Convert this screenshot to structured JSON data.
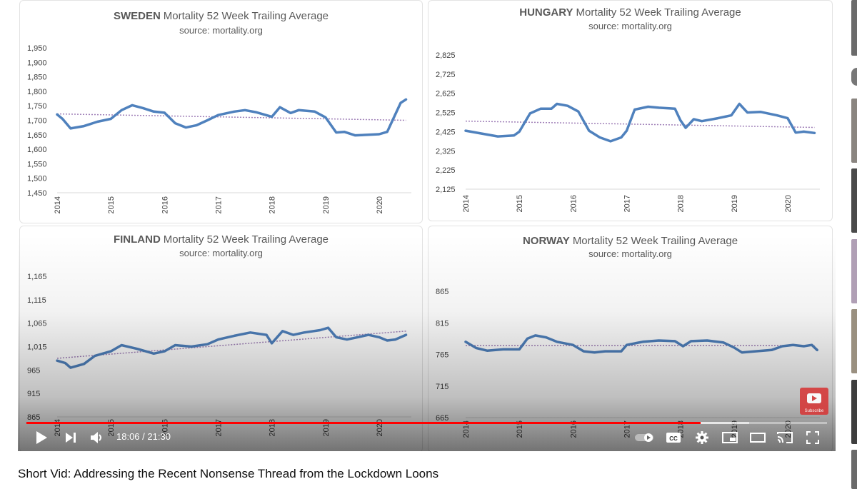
{
  "colors": {
    "series": "#4f81bd",
    "trend": "#a080b8",
    "progress": "#ff0000",
    "subscribe": "#d63a3a"
  },
  "chart_data": [
    {
      "type": "line",
      "title_country": "SWEDEN",
      "title_rest": "Mortality 52 Week Trailing Average",
      "subtitle": "source: mortality.org",
      "y_ticks": [
        "1,950",
        "1,900",
        "1,850",
        "1,800",
        "1,750",
        "1,700",
        "1,650",
        "1,600",
        "1,550",
        "1,500",
        "1,450"
      ],
      "ylim": [
        1450,
        1950
      ],
      "x_ticks": [
        "2014",
        "2015",
        "2016",
        "2017",
        "2018",
        "2019",
        "2020"
      ],
      "xlim": [
        2014,
        2020.6
      ],
      "series": [
        {
          "values": [
            [
              2014,
              1720
            ],
            [
              2014.1,
              1705
            ],
            [
              2014.25,
              1672
            ],
            [
              2014.5,
              1680
            ],
            [
              2014.75,
              1695
            ],
            [
              2015,
              1705
            ],
            [
              2015.2,
              1735
            ],
            [
              2015.4,
              1752
            ],
            [
              2015.6,
              1742
            ],
            [
              2015.8,
              1730
            ],
            [
              2016,
              1726
            ],
            [
              2016.2,
              1690
            ],
            [
              2016.4,
              1675
            ],
            [
              2016.6,
              1683
            ],
            [
              2016.8,
              1700
            ],
            [
              2017,
              1718
            ],
            [
              2017.3,
              1730
            ],
            [
              2017.5,
              1735
            ],
            [
              2017.7,
              1728
            ],
            [
              2018,
              1712
            ],
            [
              2018.15,
              1745
            ],
            [
              2018.35,
              1725
            ],
            [
              2018.5,
              1735
            ],
            [
              2018.8,
              1730
            ],
            [
              2019,
              1710
            ],
            [
              2019.2,
              1658
            ],
            [
              2019.35,
              1660
            ],
            [
              2019.55,
              1648
            ],
            [
              2019.8,
              1650
            ],
            [
              2020,
              1652
            ],
            [
              2020.15,
              1660
            ],
            [
              2020.25,
              1700
            ],
            [
              2020.4,
              1760
            ],
            [
              2020.5,
              1772
            ]
          ]
        }
      ],
      "trend": [
        [
          2014,
          1722
        ],
        [
          2020.5,
          1700
        ]
      ]
    },
    {
      "type": "line",
      "title_country": "HUNGARY",
      "title_rest": "Mortality 52 Week Trailing Average",
      "subtitle": "source: mortality.org",
      "y_ticks": [
        "2,825",
        "2,725",
        "2,625",
        "2,525",
        "2,425",
        "2,325",
        "2,225",
        "2,125"
      ],
      "ylim": [
        2125,
        2825
      ],
      "x_ticks": [
        "2014",
        "2015",
        "2016",
        "2017",
        "2018",
        "2019",
        "2020"
      ],
      "xlim": [
        2014,
        2020.6
      ],
      "series": [
        {
          "values": [
            [
              2014,
              2430
            ],
            [
              2014.3,
              2415
            ],
            [
              2014.6,
              2400
            ],
            [
              2014.9,
              2405
            ],
            [
              2015,
              2425
            ],
            [
              2015.2,
              2520
            ],
            [
              2015.4,
              2545
            ],
            [
              2015.6,
              2545
            ],
            [
              2015.7,
              2570
            ],
            [
              2015.9,
              2560
            ],
            [
              2016.1,
              2530
            ],
            [
              2016.3,
              2430
            ],
            [
              2016.5,
              2395
            ],
            [
              2016.7,
              2375
            ],
            [
              2016.9,
              2395
            ],
            [
              2017,
              2430
            ],
            [
              2017.15,
              2540
            ],
            [
              2017.4,
              2555
            ],
            [
              2017.6,
              2550
            ],
            [
              2017.9,
              2545
            ],
            [
              2018,
              2485
            ],
            [
              2018.1,
              2445
            ],
            [
              2018.25,
              2490
            ],
            [
              2018.4,
              2480
            ],
            [
              2018.7,
              2495
            ],
            [
              2018.95,
              2510
            ],
            [
              2019.1,
              2570
            ],
            [
              2019.25,
              2525
            ],
            [
              2019.5,
              2528
            ],
            [
              2019.8,
              2510
            ],
            [
              2020,
              2495
            ],
            [
              2020.15,
              2420
            ],
            [
              2020.3,
              2425
            ],
            [
              2020.5,
              2418
            ]
          ]
        }
      ],
      "trend": [
        [
          2014,
          2480
        ],
        [
          2020.5,
          2447
        ]
      ]
    },
    {
      "type": "line",
      "title_country": "FINLAND",
      "title_rest": "Mortality 52 Week Trailing Average",
      "subtitle": "source: mortality.org",
      "y_ticks": [
        "1,165",
        "1,115",
        "1,065",
        "1,015",
        "965",
        "915",
        "865"
      ],
      "ylim": [
        865,
        1165
      ],
      "x_ticks": [
        "2014",
        "2015",
        "2016",
        "2017",
        "2018",
        "2019",
        "2020"
      ],
      "xlim": [
        2014,
        2020.6
      ],
      "series": [
        {
          "values": [
            [
              2014,
              985
            ],
            [
              2014.15,
              980
            ],
            [
              2014.25,
              970
            ],
            [
              2014.5,
              978
            ],
            [
              2014.7,
              995
            ],
            [
              2015,
              1005
            ],
            [
              2015.2,
              1018
            ],
            [
              2015.5,
              1010
            ],
            [
              2015.8,
              1000
            ],
            [
              2016,
              1005
            ],
            [
              2016.2,
              1018
            ],
            [
              2016.5,
              1015
            ],
            [
              2016.8,
              1020
            ],
            [
              2017,
              1030
            ],
            [
              2017.3,
              1038
            ],
            [
              2017.6,
              1045
            ],
            [
              2017.9,
              1040
            ],
            [
              2018,
              1022
            ],
            [
              2018.2,
              1048
            ],
            [
              2018.4,
              1040
            ],
            [
              2018.6,
              1045
            ],
            [
              2018.9,
              1050
            ],
            [
              2019.05,
              1055
            ],
            [
              2019.2,
              1035
            ],
            [
              2019.4,
              1030
            ],
            [
              2019.6,
              1035
            ],
            [
              2019.8,
              1040
            ],
            [
              2020,
              1035
            ],
            [
              2020.15,
              1028
            ],
            [
              2020.3,
              1030
            ],
            [
              2020.5,
              1040
            ]
          ]
        }
      ],
      "trend": [
        [
          2014,
          990
        ],
        [
          2020.5,
          1048
        ]
      ]
    },
    {
      "type": "line",
      "title_country": "NORWAY",
      "title_rest": "Mortality 52 Week Trailing Average",
      "subtitle": "source: mortality.org",
      "y_ticks": [
        "865",
        "815",
        "765",
        "715",
        "665"
      ],
      "ylim": [
        665,
        865
      ],
      "x_ticks": [
        "2014",
        "2015",
        "2016",
        "2017",
        "2018",
        "2019",
        "2020"
      ],
      "xlim": [
        2014,
        2020.6
      ],
      "series": [
        {
          "values": [
            [
              2014,
              785
            ],
            [
              2014.2,
              775
            ],
            [
              2014.4,
              771
            ],
            [
              2014.7,
              773
            ],
            [
              2015,
              773
            ],
            [
              2015.15,
              790
            ],
            [
              2015.3,
              795
            ],
            [
              2015.5,
              792
            ],
            [
              2015.7,
              785
            ],
            [
              2016,
              780
            ],
            [
              2016.2,
              770
            ],
            [
              2016.4,
              768
            ],
            [
              2016.6,
              770
            ],
            [
              2016.9,
              770
            ],
            [
              2017,
              780
            ],
            [
              2017.3,
              785
            ],
            [
              2017.6,
              787
            ],
            [
              2017.9,
              786
            ],
            [
              2018.05,
              778
            ],
            [
              2018.2,
              786
            ],
            [
              2018.5,
              787
            ],
            [
              2018.8,
              784
            ],
            [
              2019,
              776
            ],
            [
              2019.15,
              768
            ],
            [
              2019.4,
              770
            ],
            [
              2019.7,
              772
            ],
            [
              2019.9,
              778
            ],
            [
              2020.1,
              780
            ],
            [
              2020.3,
              778
            ],
            [
              2020.45,
              780
            ],
            [
              2020.55,
              772
            ]
          ]
        }
      ],
      "trend": [
        [
          2014,
          779
        ],
        [
          2020.5,
          779
        ]
      ]
    }
  ],
  "player": {
    "time_current": "18:06",
    "time_separator": "/",
    "time_total": "21:30",
    "progress_played": 0.842,
    "progress_buffered": 0.903,
    "subscribe_label": "Subscribe"
  },
  "video": {
    "title": "Short Vid: Addressing the Recent Nonsense Thread from the Lockdown Loons"
  }
}
